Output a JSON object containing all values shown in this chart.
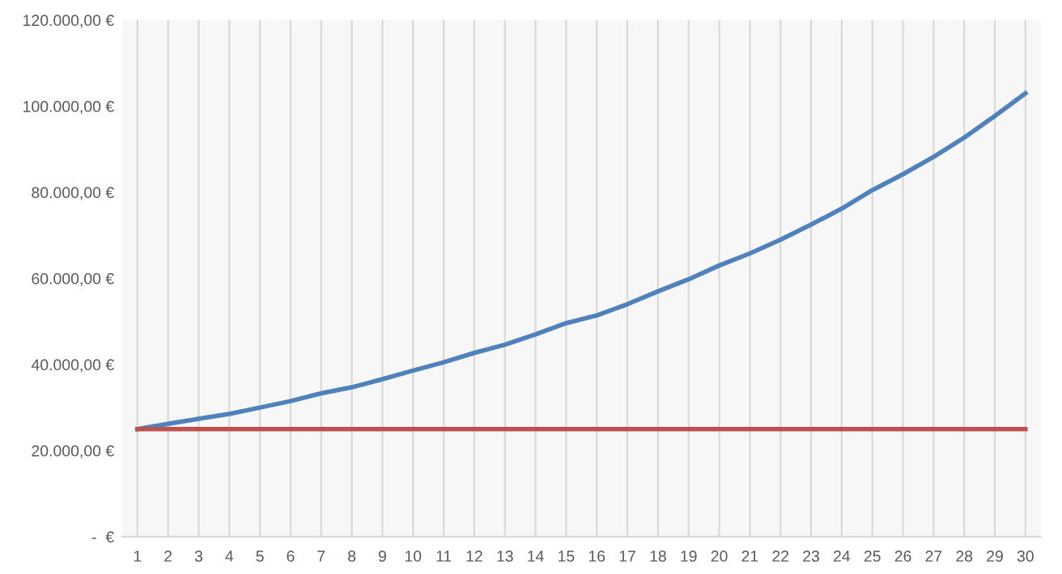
{
  "chart_data": {
    "type": "line",
    "categories": [
      "1",
      "2",
      "3",
      "4",
      "5",
      "6",
      "7",
      "8",
      "9",
      "10",
      "11",
      "12",
      "13",
      "14",
      "15",
      "16",
      "17",
      "18",
      "19",
      "20",
      "21",
      "22",
      "23",
      "24",
      "25",
      "26",
      "27",
      "28",
      "29",
      "30"
    ],
    "series": [
      {
        "color": "#4f81bd",
        "values": [
          25000,
          26200,
          27400,
          28500,
          30000,
          31500,
          33300,
          34700,
          36600,
          38600,
          40500,
          42700,
          44600,
          47000,
          49600,
          51400,
          54000,
          57000,
          59800,
          63000,
          65800,
          69000,
          72500,
          76200,
          80500,
          84200,
          88200,
          92700,
          97700,
          103000
        ]
      },
      {
        "color": "#c0504d",
        "values": [
          25000,
          25000,
          25000,
          25000,
          25000,
          25000,
          25000,
          25000,
          25000,
          25000,
          25000,
          25000,
          25000,
          25000,
          25000,
          25000,
          25000,
          25000,
          25000,
          25000,
          25000,
          25000,
          25000,
          25000,
          25000,
          25000,
          25000,
          25000,
          25000,
          25000
        ]
      }
    ],
    "ylim": [
      0,
      120000
    ],
    "yticks": [
      {
        "value": 0,
        "label": "-  €"
      },
      {
        "value": 20000,
        "label": "20.000,00 €"
      },
      {
        "value": 40000,
        "label": "40.000,00 €"
      },
      {
        "value": 60000,
        "label": "60.000,00 €"
      },
      {
        "value": 80000,
        "label": "80.000,00 €"
      },
      {
        "value": 100000,
        "label": "100.000,00 €"
      },
      {
        "value": 120000,
        "label": "120.000,00 €"
      }
    ],
    "grid": "x",
    "marker": "none",
    "line_style": "solid"
  }
}
